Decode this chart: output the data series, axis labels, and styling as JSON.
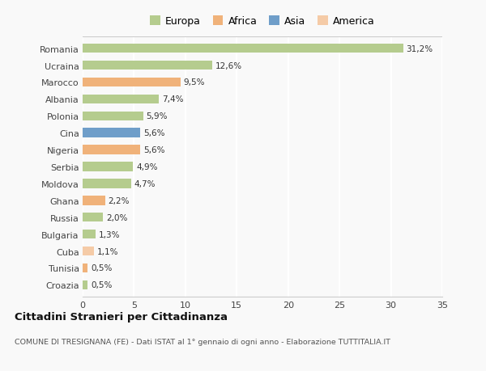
{
  "countries": [
    "Romania",
    "Ucraina",
    "Marocco",
    "Albania",
    "Polonia",
    "Cina",
    "Nigeria",
    "Serbia",
    "Moldova",
    "Ghana",
    "Russia",
    "Bulgaria",
    "Cuba",
    "Tunisia",
    "Croazia"
  ],
  "values": [
    31.2,
    12.6,
    9.5,
    7.4,
    5.9,
    5.6,
    5.6,
    4.9,
    4.7,
    2.2,
    2.0,
    1.3,
    1.1,
    0.5,
    0.5
  ],
  "labels": [
    "31,2%",
    "12,6%",
    "9,5%",
    "7,4%",
    "5,9%",
    "5,6%",
    "5,6%",
    "4,9%",
    "4,7%",
    "2,2%",
    "2,0%",
    "1,3%",
    "1,1%",
    "0,5%",
    "0,5%"
  ],
  "colors": [
    "#b5cc8e",
    "#b5cc8e",
    "#f0b27a",
    "#b5cc8e",
    "#b5cc8e",
    "#6f9ec9",
    "#f0b27a",
    "#b5cc8e",
    "#b5cc8e",
    "#f0b27a",
    "#b5cc8e",
    "#b5cc8e",
    "#f5cba7",
    "#f0b27a",
    "#b5cc8e"
  ],
  "legend_labels": [
    "Europa",
    "Africa",
    "Asia",
    "America"
  ],
  "legend_colors": [
    "#b5cc8e",
    "#f0b27a",
    "#6f9ec9",
    "#f5cba7"
  ],
  "title": "Cittadini Stranieri per Cittadinanza",
  "subtitle": "COMUNE DI TRESIGNANA (FE) - Dati ISTAT al 1° gennaio di ogni anno - Elaborazione TUTTITALIA.IT",
  "xlim": [
    0,
    35
  ],
  "xticks": [
    0,
    5,
    10,
    15,
    20,
    25,
    30,
    35
  ],
  "background_color": "#f9f9f9",
  "grid_color": "#ffffff",
  "bar_height": 0.55
}
